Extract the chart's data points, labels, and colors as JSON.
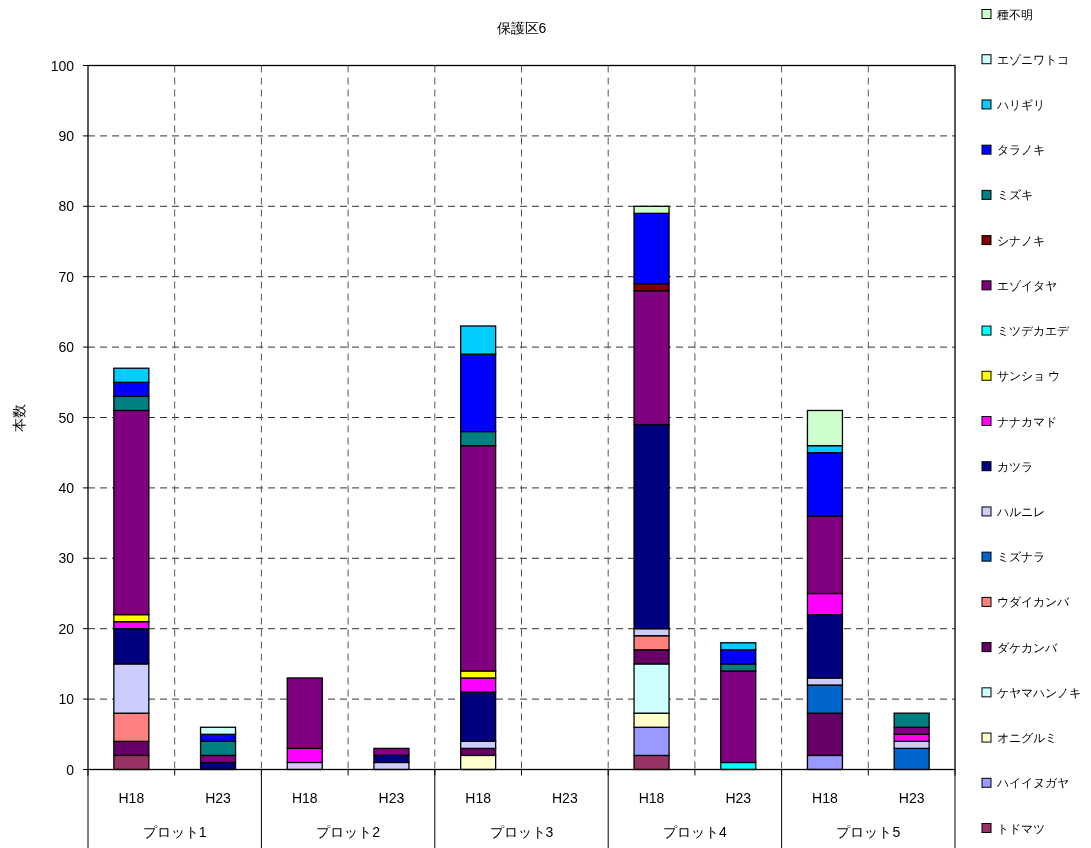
{
  "chart_data": {
    "type": "bar",
    "stacked": true,
    "title": "保護区6",
    "ylabel": "本数",
    "categories": [
      "H18",
      "H23",
      "H18",
      "H23",
      "H18",
      "H23",
      "H18",
      "H23",
      "H18",
      "H23"
    ],
    "annotations": [
      "プロット1",
      "プロット2",
      "プロット3",
      "プロット4",
      "プロット5"
    ],
    "ylim": [
      0,
      100
    ],
    "yticks": [
      0,
      10,
      20,
      30,
      40,
      50,
      60,
      70,
      80,
      90,
      100
    ],
    "grid": true,
    "legend": "right",
    "series": [
      {
        "name": "トドマツ",
        "color": "#993366",
        "values": [
          2,
          0,
          0,
          0,
          0,
          0,
          2,
          0,
          0,
          0
        ]
      },
      {
        "name": "ハイイヌガヤ",
        "color": "#9999ff",
        "values": [
          0,
          0,
          0,
          0,
          0,
          0,
          4,
          0,
          2,
          0
        ]
      },
      {
        "name": "オニグルミ",
        "color": "#ffffcc",
        "values": [
          0,
          0,
          0,
          0,
          2,
          0,
          2,
          0,
          0,
          0
        ]
      },
      {
        "name": "ケヤマハンノキ",
        "color": "#ccffff",
        "values": [
          0,
          0,
          0,
          0,
          0,
          0,
          7,
          0,
          0,
          0
        ]
      },
      {
        "name": "ダケカンバ",
        "color": "#660066",
        "values": [
          2,
          0,
          0,
          0,
          1,
          0,
          2,
          0,
          6,
          0
        ]
      },
      {
        "name": "ウダイカンバ",
        "color": "#ff8080",
        "values": [
          4,
          0,
          0,
          0,
          0,
          0,
          2,
          0,
          0,
          0
        ]
      },
      {
        "name": "ミズナラ",
        "color": "#0066cc",
        "values": [
          0,
          0,
          0,
          0,
          0,
          0,
          0,
          0,
          4,
          3
        ]
      },
      {
        "name": "ハルニレ",
        "color": "#ccccff",
        "values": [
          7,
          0,
          1,
          1,
          1,
          0,
          1,
          0,
          1,
          1
        ]
      },
      {
        "name": "カツラ",
        "color": "#000080",
        "values": [
          5,
          1,
          0,
          1,
          7,
          0,
          29,
          0,
          9,
          0
        ]
      },
      {
        "name": "ナナカマド",
        "color": "#ff00ff",
        "values": [
          1,
          0,
          2,
          0,
          2,
          0,
          0,
          0,
          3,
          1
        ]
      },
      {
        "name": "サンショ ウ",
        "color": "#ffff00",
        "values": [
          1,
          0,
          0,
          0,
          1,
          0,
          0,
          0,
          0,
          0
        ]
      },
      {
        "name": "ミツデカエデ",
        "color": "#00ffff",
        "values": [
          0,
          0,
          0,
          0,
          0,
          0,
          0,
          1,
          0,
          0
        ]
      },
      {
        "name": "エゾイタヤ",
        "color": "#800080",
        "values": [
          29,
          1,
          10,
          1,
          32,
          0,
          19,
          13,
          11,
          1
        ]
      },
      {
        "name": "シナノキ",
        "color": "#800000",
        "values": [
          0,
          0,
          0,
          0,
          0,
          0,
          1,
          0,
          0,
          0
        ]
      },
      {
        "name": "ミズキ",
        "color": "#008080",
        "values": [
          2,
          2,
          0,
          0,
          2,
          0,
          0,
          1,
          0,
          2
        ]
      },
      {
        "name": "タラノキ",
        "color": "#0000ff",
        "values": [
          2,
          1,
          0,
          0,
          11,
          0,
          10,
          2,
          9,
          0
        ]
      },
      {
        "name": "ハリギリ",
        "color": "#00ccff",
        "values": [
          2,
          0,
          0,
          0,
          4,
          0,
          0,
          1,
          1,
          0
        ]
      },
      {
        "name": "エゾニワトコ",
        "color": "#ccffff",
        "values": [
          0,
          1,
          0,
          0,
          0,
          0,
          0,
          0,
          0,
          0
        ]
      },
      {
        "name": "種不明",
        "color": "#ccffcc",
        "values": [
          0,
          0,
          0,
          0,
          0,
          0,
          1,
          0,
          5,
          0
        ]
      }
    ]
  }
}
